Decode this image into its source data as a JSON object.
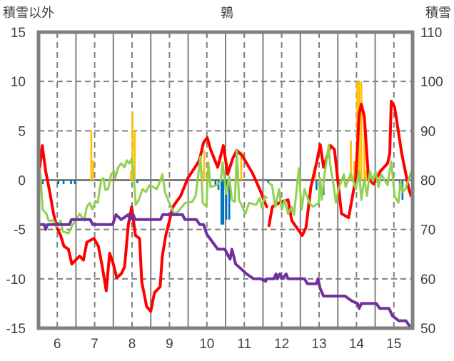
{
  "chart_data": {
    "type": "line",
    "title": "鶉",
    "ylabel_left": "積雪以外",
    "ylabel_right": "積雪",
    "xlim": [
      5.5,
      15.5
    ],
    "ylim_left": [
      -15,
      15
    ],
    "ylim_right": [
      50,
      110
    ],
    "x_ticks": [
      "6",
      "7",
      "8",
      "9",
      "10",
      "11",
      "12",
      "13",
      "14",
      "15"
    ],
    "x_tick_values": [
      6,
      7,
      8,
      9,
      10,
      11,
      12,
      13,
      14,
      15
    ],
    "y_left_ticks": [
      "15",
      "10",
      "5",
      "0",
      "-5",
      "-10",
      "-15"
    ],
    "y_left_tick_values": [
      15,
      10,
      5,
      0,
      -5,
      -10,
      -15
    ],
    "y_right_ticks": [
      "110",
      "100",
      "90",
      "80",
      "70",
      "60",
      "50"
    ],
    "y_right_tick_values": [
      110,
      100,
      90,
      80,
      70,
      60,
      50
    ],
    "grid": true,
    "colors": {
      "red": "#FF0000",
      "green": "#92D050",
      "purple": "#7030A0",
      "yellow": "#FFC000",
      "blue": "#0070C0",
      "axis": "#808080"
    },
    "series": [
      {
        "name": "red",
        "axis": "left",
        "points": [
          [
            5.5,
            0.2
          ],
          [
            5.6,
            3.5
          ],
          [
            5.69,
            0.9
          ],
          [
            5.8,
            -1.2
          ],
          [
            5.9,
            -3.4
          ],
          [
            6.0,
            -4.9
          ],
          [
            6.09,
            -5.6
          ],
          [
            6.18,
            -6.7
          ],
          [
            6.3,
            -7.0
          ],
          [
            6.39,
            -8.5
          ],
          [
            6.49,
            -8.1
          ],
          [
            6.6,
            -7.7
          ],
          [
            6.7,
            -8.1
          ],
          [
            6.79,
            -6.3
          ],
          [
            6.98,
            -5.9
          ],
          [
            7.1,
            -6.7
          ],
          [
            7.19,
            -8.5
          ],
          [
            7.31,
            -11.2
          ],
          [
            7.4,
            -7.4
          ],
          [
            7.5,
            -8.5
          ],
          [
            7.59,
            -9.9
          ],
          [
            7.71,
            -9.5
          ],
          [
            7.8,
            -8.8
          ],
          [
            7.9,
            -4.5
          ],
          [
            7.99,
            -2.7
          ],
          [
            8.09,
            -5.6
          ],
          [
            8.2,
            -5.9
          ],
          [
            8.26,
            -10.3
          ],
          [
            8.39,
            -12.8
          ],
          [
            8.5,
            -13.3
          ],
          [
            8.6,
            -11.4
          ],
          [
            8.75,
            -10.8
          ],
          [
            8.81,
            -7.7
          ],
          [
            8.9,
            -5.6
          ],
          [
            9.0,
            -4.1
          ],
          [
            9.09,
            -2.7
          ],
          [
            9.3,
            -1.6
          ],
          [
            9.49,
            0.2
          ],
          [
            9.7,
            1.4
          ],
          [
            9.8,
            2.0
          ],
          [
            9.91,
            3.8
          ],
          [
            10.01,
            4.3
          ],
          [
            10.1,
            3.1
          ],
          [
            10.29,
            1.3
          ],
          [
            10.44,
            3.5
          ],
          [
            10.56,
            0.6
          ],
          [
            10.69,
            2.2
          ],
          [
            10.8,
            3.0
          ],
          [
            10.94,
            2.5
          ],
          [
            11.22,
            0.7
          ],
          [
            11.41,
            -0.9
          ],
          [
            11.6,
            -2.7
          ],
          null,
          [
            11.66,
            -4.6
          ],
          [
            11.75,
            -2.7
          ],
          [
            11.98,
            -2.2
          ],
          [
            12.17,
            -2.0
          ],
          [
            12.27,
            -4.1
          ],
          [
            12.55,
            -5.6
          ],
          [
            12.65,
            -4.8
          ],
          [
            12.78,
            -0.7
          ],
          [
            12.93,
            1.7
          ],
          [
            13.03,
            3.6
          ],
          [
            13.12,
            1.3
          ],
          [
            13.31,
            3.5
          ],
          [
            13.41,
            3.1
          ],
          [
            13.6,
            -3.4
          ],
          [
            13.79,
            -3.8
          ],
          [
            13.98,
            0.2
          ],
          [
            14.07,
            6.7
          ],
          [
            14.13,
            7.7
          ],
          [
            14.21,
            6.4
          ],
          [
            14.32,
            0.2
          ],
          [
            14.45,
            -0.4
          ],
          [
            14.64,
            0.9
          ],
          [
            14.83,
            1.7
          ],
          [
            14.89,
            2.7
          ],
          [
            14.93,
            8.0
          ],
          [
            15.02,
            7.4
          ],
          [
            15.21,
            2.7
          ],
          [
            15.4,
            -0.9
          ],
          [
            15.46,
            -1.6
          ]
        ]
      },
      {
        "name": "green",
        "axis": "left",
        "points": [
          [
            5.5,
            0.9
          ],
          [
            5.54,
            1.2
          ],
          [
            5.61,
            -3.0
          ],
          [
            5.71,
            -3.4
          ],
          [
            5.77,
            -4.1
          ],
          [
            5.9,
            -4.1
          ],
          [
            5.99,
            -4.7
          ],
          [
            6.09,
            -4.1
          ],
          [
            6.15,
            -5.2
          ],
          [
            6.3,
            -5.4
          ],
          [
            6.37,
            -4.8
          ],
          [
            6.53,
            -3.8
          ],
          [
            6.6,
            -3.4
          ],
          [
            6.72,
            -4.1
          ],
          [
            6.79,
            -2.7
          ],
          [
            6.87,
            -2.3
          ],
          [
            6.94,
            -3.0
          ],
          [
            7.02,
            -2.1
          ],
          [
            7.08,
            -2.3
          ],
          [
            7.17,
            -0.1
          ],
          [
            7.23,
            0.2
          ],
          [
            7.29,
            -1.0
          ],
          [
            7.36,
            -0.9
          ],
          [
            7.44,
            0.6
          ],
          [
            7.52,
            0.9
          ],
          [
            7.55,
            0.2
          ],
          [
            7.63,
            1.3
          ],
          [
            7.71,
            1.7
          ],
          [
            7.8,
            1.3
          ],
          [
            7.86,
            2.0
          ],
          [
            7.93,
            1.7
          ],
          [
            7.99,
            2.2
          ],
          [
            8.05,
            0.2
          ],
          [
            8.1,
            -2.5
          ],
          [
            8.18,
            -2.0
          ],
          [
            8.28,
            -0.9
          ],
          [
            8.37,
            -1.2
          ],
          [
            8.47,
            -0.5
          ],
          [
            8.66,
            -0.9
          ],
          [
            8.75,
            -0.1
          ],
          [
            8.81,
            0.6
          ],
          [
            8.88,
            -1.2
          ],
          [
            8.98,
            -2.2
          ],
          [
            9.13,
            -3.4
          ],
          [
            9.23,
            -3.2
          ],
          [
            9.42,
            -2.3
          ],
          [
            9.61,
            -2.2
          ],
          [
            9.7,
            -1.6
          ],
          [
            9.83,
            2.4
          ],
          [
            9.89,
            -2.3
          ],
          [
            9.99,
            -2.7
          ],
          [
            10.04,
            1.8
          ],
          [
            10.1,
            -0.7
          ],
          [
            10.27,
            -0.5
          ],
          [
            10.37,
            -0.1
          ],
          [
            10.42,
            1.8
          ],
          [
            10.52,
            -1.4
          ],
          [
            10.6,
            0.4
          ],
          [
            10.67,
            -2.0
          ],
          [
            10.75,
            -2.2
          ],
          [
            10.8,
            3.0
          ],
          [
            10.86,
            -2.0
          ],
          [
            11.03,
            -3.4
          ],
          [
            11.13,
            -2.3
          ],
          [
            11.32,
            -2.5
          ],
          [
            11.41,
            -1.8
          ],
          [
            11.47,
            -2.8
          ],
          [
            11.55,
            -1.6
          ],
          [
            11.6,
            -1.8
          ],
          null,
          [
            11.66,
            -0.3
          ],
          [
            11.74,
            -0.5
          ],
          [
            11.83,
            -2.7
          ],
          [
            11.93,
            -0.9
          ],
          [
            12.0,
            -3.0
          ],
          [
            12.08,
            -2.0
          ],
          [
            12.17,
            -3.4
          ],
          [
            12.27,
            -2.7
          ],
          [
            12.33,
            -3.5
          ],
          [
            12.46,
            1.2
          ],
          [
            12.53,
            -3.0
          ],
          [
            12.61,
            -0.9
          ],
          [
            12.74,
            -2.3
          ],
          [
            12.84,
            -2.7
          ],
          [
            12.99,
            -2.3
          ],
          [
            13.03,
            0.2
          ],
          [
            13.07,
            -2.0
          ],
          [
            13.14,
            0.4
          ],
          [
            13.26,
            3.6
          ],
          [
            13.29,
            1.7
          ],
          [
            13.37,
            -0.1
          ],
          [
            13.45,
            -2.3
          ],
          [
            13.52,
            -0.9
          ],
          [
            13.66,
            0.6
          ],
          [
            13.71,
            -0.7
          ],
          [
            13.85,
            0.7
          ],
          [
            13.98,
            -0.9
          ],
          [
            14.07,
            0.9
          ],
          [
            14.13,
            -2.0
          ],
          [
            14.21,
            0.2
          ],
          [
            14.28,
            -1.6
          ],
          [
            14.36,
            0.9
          ],
          [
            14.44,
            -0.1
          ],
          [
            14.51,
            0.9
          ],
          [
            14.59,
            -0.7
          ],
          [
            14.66,
            0.6
          ],
          [
            14.83,
            -0.5
          ],
          [
            14.93,
            1.9
          ],
          [
            15.02,
            -1.6
          ],
          [
            15.12,
            -2.3
          ],
          [
            15.18,
            -0.1
          ],
          [
            15.23,
            -1.2
          ],
          [
            15.31,
            -0.9
          ],
          [
            15.46,
            0.8
          ]
        ]
      },
      {
        "name": "purple",
        "axis": "right",
        "points": [
          [
            5.5,
            71
          ],
          [
            5.65,
            71
          ],
          [
            5.69,
            70
          ],
          [
            5.74,
            71
          ],
          [
            6.33,
            71
          ],
          [
            6.38,
            72
          ],
          [
            6.88,
            72
          ],
          [
            6.95,
            71
          ],
          [
            7.48,
            71
          ],
          [
            7.57,
            73
          ],
          [
            7.71,
            72
          ],
          [
            7.9,
            73
          ],
          [
            7.95,
            72
          ],
          [
            8.03,
            73
          ],
          [
            8.08,
            72
          ],
          [
            8.76,
            72
          ],
          [
            8.82,
            73
          ],
          [
            9.35,
            73
          ],
          [
            9.41,
            72
          ],
          [
            9.72,
            72
          ],
          [
            9.81,
            71
          ],
          [
            9.91,
            71
          ],
          [
            10.0,
            69
          ],
          [
            10.1,
            68
          ],
          [
            10.29,
            66
          ],
          [
            10.48,
            66
          ],
          [
            10.62,
            64
          ],
          [
            10.67,
            66
          ],
          [
            10.77,
            63
          ],
          [
            10.92,
            62
          ],
          [
            11.06,
            61
          ],
          [
            11.25,
            60
          ],
          [
            11.44,
            60
          ],
          [
            11.57,
            59.5
          ],
          [
            11.6,
            60
          ],
          null,
          [
            11.66,
            60
          ],
          [
            11.79,
            60
          ],
          [
            11.85,
            61
          ],
          [
            11.89,
            60
          ],
          [
            11.95,
            61
          ],
          [
            12.02,
            60
          ],
          [
            12.12,
            61
          ],
          [
            12.17,
            60
          ],
          [
            12.61,
            60
          ],
          [
            12.69,
            59
          ],
          [
            12.93,
            59
          ],
          [
            12.97,
            60
          ],
          [
            13.03,
            58
          ],
          [
            13.12,
            56.5
          ],
          [
            13.69,
            56.5
          ],
          [
            13.88,
            55.5
          ],
          [
            14.03,
            55
          ],
          [
            14.07,
            54
          ],
          [
            14.13,
            55
          ],
          [
            14.53,
            55
          ],
          [
            14.62,
            54
          ],
          [
            14.87,
            54
          ],
          [
            14.96,
            52.5
          ],
          [
            15.13,
            51.5
          ],
          [
            15.32,
            51.5
          ],
          [
            15.46,
            50
          ]
        ]
      }
    ],
    "bars": [
      {
        "name": "yellow",
        "axis": "left",
        "points": [
          [
            6.91,
            5.0
          ],
          [
            6.96,
            2.0
          ],
          [
            7.97,
            1.0
          ],
          [
            8.01,
            7.0
          ],
          [
            8.07,
            5.0
          ],
          [
            9.87,
            1.0
          ],
          [
            9.93,
            3.0
          ],
          [
            10.84,
            1.0
          ],
          [
            10.92,
            2.9
          ],
          [
            12.9,
            1.2
          ],
          [
            13.85,
            4.0
          ],
          [
            13.94,
            1.9
          ],
          [
            14.02,
            10
          ],
          [
            14.07,
            10
          ],
          [
            14.13,
            10
          ],
          [
            14.21,
            7.0
          ],
          [
            14.26,
            1.0
          ]
        ]
      },
      {
        "name": "blue",
        "axis": "left",
        "points": [
          [
            5.52,
            -4.0
          ],
          [
            5.61,
            -0.4
          ],
          [
            6.03,
            -0.4
          ],
          [
            6.17,
            -0.4
          ],
          [
            6.37,
            -0.4
          ],
          [
            6.47,
            -0.4
          ],
          [
            8.14,
            -0.3
          ],
          [
            10.23,
            -0.5
          ],
          [
            10.31,
            -1.0
          ],
          [
            10.39,
            -4.5
          ],
          [
            10.44,
            -4.5
          ],
          [
            10.52,
            -4.0
          ],
          [
            10.6,
            -4.0
          ],
          [
            11.64,
            -0.3
          ],
          [
            12.93,
            -1.0
          ],
          [
            13.12,
            -1.5
          ],
          [
            15.16,
            -1.0
          ],
          [
            15.23,
            -2.0
          ]
        ]
      }
    ]
  }
}
